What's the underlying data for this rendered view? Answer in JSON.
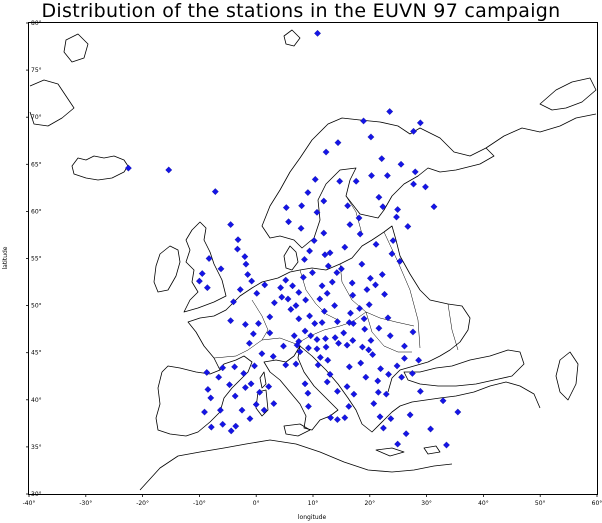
{
  "title": "Distribution of the stations in the EUVN 97 campaign",
  "chart_data": {
    "type": "scatter",
    "title": "Distribution of the stations in the EUVN 97 campaign",
    "xlabel": "longitude",
    "ylabel": "latitude",
    "xlim": [
      -40,
      60
    ],
    "ylim": [
      30,
      80
    ],
    "xticks": [
      -40,
      -30,
      -20,
      -10,
      0,
      10,
      20,
      30,
      40,
      50,
      60
    ],
    "xtick_labels": [
      "-40°",
      "-30°",
      "-20°",
      "-10°",
      "0°",
      "10°",
      "20°",
      "30°",
      "40°",
      "50°",
      "60°"
    ],
    "yticks": [
      30,
      35,
      40,
      45,
      50,
      55,
      60,
      65,
      70,
      75,
      80
    ],
    "ytick_labels": [
      "30°",
      "35°",
      "40°",
      "45°",
      "50°",
      "55°",
      "60°",
      "65°",
      "70°",
      "75°",
      "80°"
    ],
    "marker_color": "#1414e6",
    "points": [
      [
        -22.5,
        64.6
      ],
      [
        -15.4,
        64.4
      ],
      [
        -7.2,
        62.1
      ],
      [
        10.8,
        78.9
      ],
      [
        -8.3,
        55.0
      ],
      [
        -6.2,
        53.9
      ],
      [
        -9.5,
        53.4
      ],
      [
        -10.0,
        52.6
      ],
      [
        -8.6,
        51.9
      ],
      [
        -4.5,
        58.6
      ],
      [
        -3.2,
        57.0
      ],
      [
        -3.3,
        56.0
      ],
      [
        -2.0,
        55.2
      ],
      [
        -1.8,
        54.4
      ],
      [
        -1.5,
        53.3
      ],
      [
        -0.8,
        52.6
      ],
      [
        -2.8,
        51.7
      ],
      [
        -4.0,
        50.4
      ],
      [
        0.1,
        51.3
      ],
      [
        1.5,
        52.2
      ],
      [
        -4.5,
        48.4
      ],
      [
        -1.9,
        48.0
      ],
      [
        0.4,
        48.1
      ],
      [
        2.4,
        48.8
      ],
      [
        3.2,
        50.3
      ],
      [
        -0.5,
        47.0
      ],
      [
        2.4,
        47.1
      ],
      [
        -1.2,
        46.0
      ],
      [
        1.0,
        44.9
      ],
      [
        -0.3,
        43.6
      ],
      [
        3.0,
        44.6
      ],
      [
        4.8,
        45.7
      ],
      [
        5.2,
        43.7
      ],
      [
        7.0,
        43.8
      ],
      [
        4.3,
        51.9
      ],
      [
        5.2,
        52.7
      ],
      [
        6.4,
        52.1
      ],
      [
        4.5,
        50.9
      ],
      [
        5.6,
        50.7
      ],
      [
        6.1,
        49.6
      ],
      [
        7.0,
        50.0
      ],
      [
        7.5,
        48.6
      ],
      [
        8.7,
        50.6
      ],
      [
        9.4,
        48.9
      ],
      [
        10.3,
        48.1
      ],
      [
        11.6,
        48.2
      ],
      [
        12.0,
        49.4
      ],
      [
        11.2,
        50.7
      ],
      [
        13.4,
        52.5
      ],
      [
        11.6,
        52.1
      ],
      [
        9.9,
        53.5
      ],
      [
        8.3,
        53.0
      ],
      [
        7.5,
        51.4
      ],
      [
        12.5,
        51.3
      ],
      [
        14.2,
        53.5
      ],
      [
        12.7,
        54.2
      ],
      [
        13.8,
        50.0
      ],
      [
        6.7,
        46.8
      ],
      [
        7.5,
        46.2
      ],
      [
        8.6,
        47.3
      ],
      [
        9.6,
        46.8
      ],
      [
        7.2,
        45.8
      ],
      [
        10.7,
        46.4
      ],
      [
        12.2,
        46.5
      ],
      [
        13.9,
        46.6
      ],
      [
        15.4,
        47.1
      ],
      [
        16.4,
        48.2
      ],
      [
        14.3,
        48.3
      ],
      [
        16.6,
        49.2
      ],
      [
        18.2,
        49.7
      ],
      [
        17.1,
        48.1
      ],
      [
        19.0,
        48.6
      ],
      [
        19.1,
        47.5
      ],
      [
        21.6,
        47.6
      ],
      [
        20.2,
        46.3
      ],
      [
        16.0,
        45.8
      ],
      [
        14.5,
        46.0
      ],
      [
        18.7,
        45.6
      ],
      [
        17.0,
        46.3
      ],
      [
        7.7,
        45.1
      ],
      [
        9.2,
        45.5
      ],
      [
        10.7,
        45.4
      ],
      [
        12.3,
        45.6
      ],
      [
        11.3,
        44.5
      ],
      [
        10.9,
        43.7
      ],
      [
        12.6,
        44.2
      ],
      [
        12.5,
        41.9
      ],
      [
        14.3,
        40.9
      ],
      [
        13.0,
        42.7
      ],
      [
        16.0,
        41.4
      ],
      [
        17.2,
        40.6
      ],
      [
        16.3,
        39.3
      ],
      [
        15.6,
        38.1
      ],
      [
        14.3,
        37.9
      ],
      [
        13.1,
        38.1
      ],
      [
        9.2,
        39.3
      ],
      [
        9.1,
        40.7
      ],
      [
        8.6,
        41.7
      ],
      [
        16.4,
        43.5
      ],
      [
        18.4,
        43.9
      ],
      [
        19.8,
        45.3
      ],
      [
        20.5,
        44.8
      ],
      [
        21.9,
        43.3
      ],
      [
        19.3,
        42.4
      ],
      [
        21.4,
        42.0
      ],
      [
        23.3,
        42.7
      ],
      [
        25.6,
        42.4
      ],
      [
        27.5,
        42.8
      ],
      [
        24.8,
        43.6
      ],
      [
        26.1,
        44.4
      ],
      [
        28.6,
        44.2
      ],
      [
        23.6,
        46.8
      ],
      [
        26.1,
        45.7
      ],
      [
        27.6,
        47.2
      ],
      [
        21.5,
        40.8
      ],
      [
        22.9,
        40.6
      ],
      [
        20.7,
        39.6
      ],
      [
        21.8,
        38.2
      ],
      [
        23.7,
        38.0
      ],
      [
        22.4,
        37.0
      ],
      [
        24.9,
        35.3
      ],
      [
        26.4,
        36.4
      ],
      [
        27.1,
        38.4
      ],
      [
        28.9,
        40.9
      ],
      [
        32.9,
        39.9
      ],
      [
        30.7,
        36.9
      ],
      [
        33.5,
        35.2
      ],
      [
        35.5,
        38.7
      ],
      [
        -9.1,
        38.7
      ],
      [
        -8.5,
        41.1
      ],
      [
        -8.7,
        42.9
      ],
      [
        -8.0,
        40.2
      ],
      [
        -7.9,
        37.1
      ],
      [
        -6.3,
        38.9
      ],
      [
        -5.9,
        37.4
      ],
      [
        -4.4,
        36.7
      ],
      [
        -3.6,
        37.2
      ],
      [
        -5.9,
        43.4
      ],
      [
        -3.8,
        43.5
      ],
      [
        -4.7,
        41.6
      ],
      [
        -3.7,
        40.4
      ],
      [
        -1.9,
        41.3
      ],
      [
        -0.9,
        41.7
      ],
      [
        2.2,
        41.4
      ],
      [
        0.0,
        39.5
      ],
      [
        -1.1,
        38.0
      ],
      [
        -2.5,
        38.9
      ],
      [
        1.4,
        38.9
      ],
      [
        3.1,
        39.6
      ],
      [
        -6.6,
        42.4
      ],
      [
        -2.2,
        42.8
      ],
      [
        0.6,
        40.8
      ],
      [
        5.3,
        60.4
      ],
      [
        5.7,
        58.9
      ],
      [
        7.9,
        58.2
      ],
      [
        10.7,
        59.9
      ],
      [
        10.4,
        63.4
      ],
      [
        12.3,
        66.3
      ],
      [
        14.4,
        67.3
      ],
      [
        18.9,
        69.6
      ],
      [
        23.5,
        70.6
      ],
      [
        28.9,
        69.4
      ],
      [
        9.1,
        62.0
      ],
      [
        11.9,
        61.1
      ],
      [
        8.0,
        60.6
      ],
      [
        18.1,
        59.3
      ],
      [
        16.5,
        58.6
      ],
      [
        13.0,
        55.6
      ],
      [
        11.9,
        57.7
      ],
      [
        15.6,
        56.2
      ],
      [
        17.6,
        63.2
      ],
      [
        20.3,
        63.8
      ],
      [
        22.1,
        65.6
      ],
      [
        20.2,
        67.9
      ],
      [
        14.7,
        63.2
      ],
      [
        16.1,
        60.6
      ],
      [
        18.3,
        57.6
      ],
      [
        24.9,
        60.2
      ],
      [
        22.3,
        60.5
      ],
      [
        29.8,
        62.6
      ],
      [
        25.5,
        65.0
      ],
      [
        27.7,
        68.5
      ],
      [
        28.0,
        64.2
      ],
      [
        23.1,
        63.8
      ],
      [
        27.7,
        62.9
      ],
      [
        21.6,
        61.5
      ],
      [
        31.3,
        60.5
      ],
      [
        9.4,
        55.8
      ],
      [
        12.1,
        55.4
      ],
      [
        10.2,
        56.9
      ],
      [
        8.5,
        54.9
      ],
      [
        24.7,
        59.4
      ],
      [
        26.7,
        58.4
      ],
      [
        24.1,
        56.9
      ],
      [
        21.1,
        56.5
      ],
      [
        25.3,
        54.7
      ],
      [
        23.9,
        55.5
      ],
      [
        21.0,
        52.2
      ],
      [
        17.0,
        51.1
      ],
      [
        18.6,
        54.4
      ],
      [
        19.9,
        50.1
      ],
      [
        22.6,
        51.2
      ],
      [
        16.9,
        52.4
      ],
      [
        22.2,
        53.3
      ],
      [
        20.1,
        52.9
      ],
      [
        19.5,
        51.7
      ],
      [
        15.0,
        53.9
      ],
      [
        23.2,
        48.7
      ]
    ]
  }
}
